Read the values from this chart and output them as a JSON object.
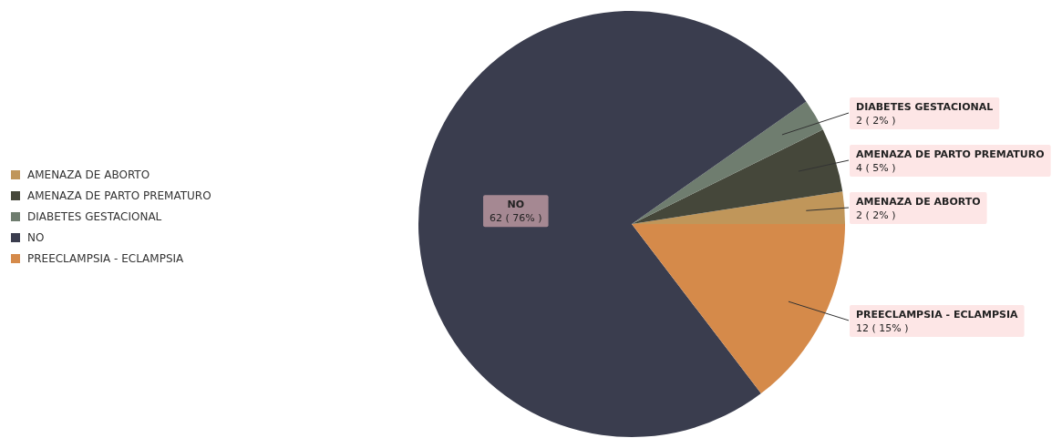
{
  "chart_data": {
    "type": "pie",
    "categories": [
      "AMENAZA DE ABORTO",
      "AMENAZA DE PARTO PREMATURO",
      "DIABETES GESTACIONAL",
      "NO",
      "PREECLAMPSIA - ECLAMPSIA"
    ],
    "values": [
      2,
      4,
      2,
      62,
      12
    ],
    "colors": [
      "#c0965a",
      "#45473a",
      "#6f7d6f",
      "#3a3d4e",
      "#d58a4a"
    ],
    "value_labels": [
      "2 ( 2% )",
      "4 ( 5% )",
      "2 ( 2% )",
      "62 ( 76% )",
      "12 ( 15% )"
    ],
    "legend": "left"
  }
}
